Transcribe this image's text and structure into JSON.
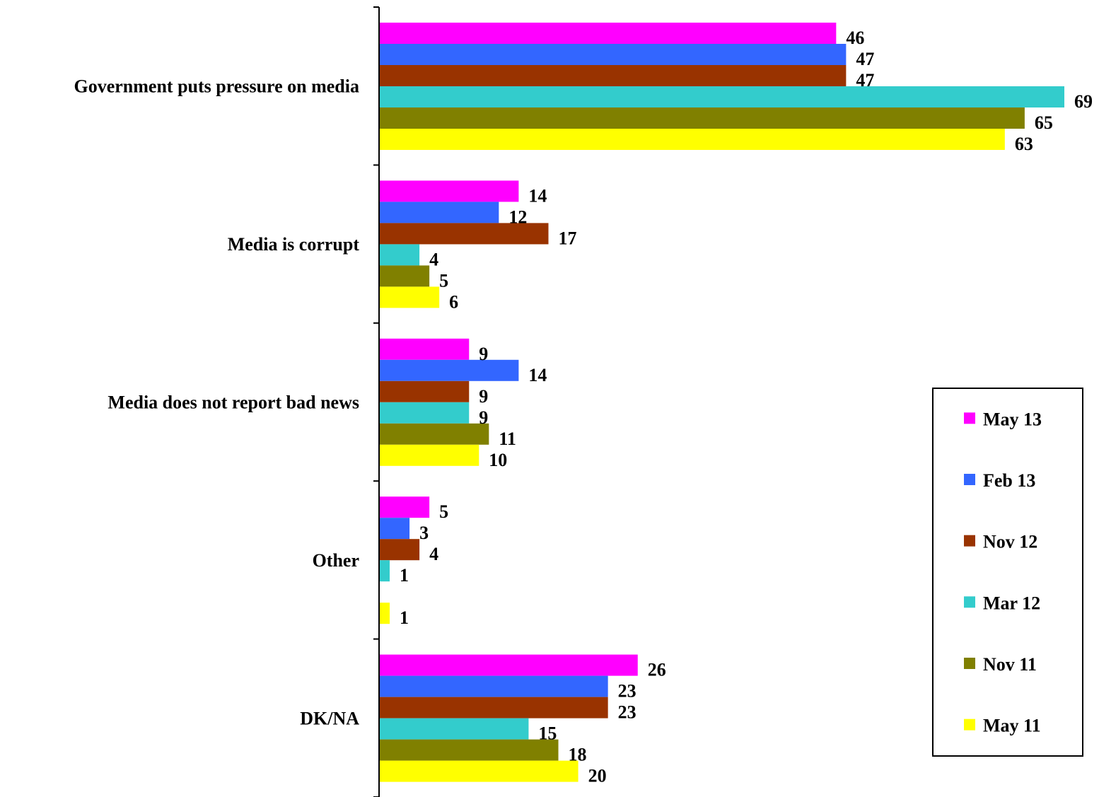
{
  "chart_data": {
    "type": "bar",
    "orientation": "horizontal",
    "title": "",
    "xlabel": "",
    "ylabel": "",
    "xlim": [
      0,
      69
    ],
    "grid": false,
    "legend_position": "right",
    "categories": [
      "Government puts pressure on media",
      "Media is corrupt",
      "Media does not report bad news",
      "Other",
      "DK/NA"
    ],
    "series": [
      {
        "name": "May 13",
        "color": "#FF00FF",
        "values": [
          46,
          14,
          9,
          5,
          26
        ]
      },
      {
        "name": "Feb 13",
        "color": "#3366FF",
        "values": [
          47,
          12,
          14,
          3,
          23
        ]
      },
      {
        "name": "Nov 12",
        "color": "#993300",
        "values": [
          47,
          17,
          9,
          4,
          23
        ]
      },
      {
        "name": "Mar 12",
        "color": "#33CCCC",
        "values": [
          69,
          4,
          9,
          1,
          15
        ]
      },
      {
        "name": "Nov 11",
        "color": "#808000",
        "values": [
          65,
          5,
          11,
          null,
          18
        ]
      },
      {
        "name": "May 11",
        "color": "#FFFF00",
        "values": [
          63,
          6,
          10,
          1,
          20
        ]
      }
    ]
  }
}
